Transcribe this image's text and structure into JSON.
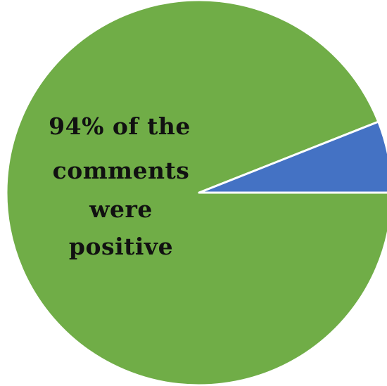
{
  "chart_data": {
    "type": "pie",
    "slices": [
      {
        "value": 94,
        "color": "#70ad47"
      },
      {
        "value": 6,
        "color": "#4472c4"
      }
    ],
    "annotation": {
      "lines": [
        "94% of the",
        "comments",
        "were",
        "positive"
      ]
    }
  }
}
